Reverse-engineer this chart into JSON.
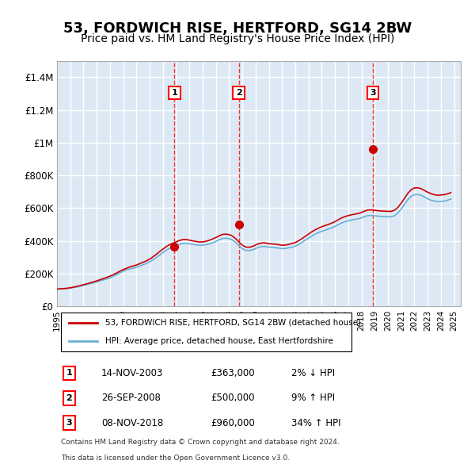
{
  "title": "53, FORDWICH RISE, HERTFORD, SG14 2BW",
  "subtitle": "Price paid vs. HM Land Registry's House Price Index (HPI)",
  "title_fontsize": 13,
  "subtitle_fontsize": 10,
  "background_color": "#ffffff",
  "plot_bg_color": "#dce9f5",
  "grid_color": "#ffffff",
  "ylim": [
    0,
    1500000
  ],
  "yticks": [
    0,
    200000,
    400000,
    600000,
    800000,
    1000000,
    1200000,
    1400000
  ],
  "ytick_labels": [
    "£0",
    "£200K",
    "£400K",
    "£600K",
    "£800K",
    "£1M",
    "£1.2M",
    "£1.4M"
  ],
  "xlim_start": 1995.0,
  "xlim_end": 2025.5,
  "hpi_color": "#6baed6",
  "price_color": "#cc0000",
  "transactions": [
    {
      "label": "1",
      "date": "14-NOV-2003",
      "price": 363000,
      "hpi_diff": "2% ↓ HPI",
      "year": 2003.87
    },
    {
      "label": "2",
      "date": "26-SEP-2008",
      "price": 500000,
      "hpi_diff": "9% ↑ HPI",
      "year": 2008.73
    },
    {
      "label": "3",
      "date": "08-NOV-2018",
      "price": 960000,
      "hpi_diff": "34% ↑ HPI",
      "year": 2018.85
    }
  ],
  "legend_line1": "53, FORDWICH RISE, HERTFORD, SG14 2BW (detached house)",
  "legend_line2": "HPI: Average price, detached house, East Hertfordshire",
  "footnote1": "Contains HM Land Registry data © Crown copyright and database right 2024.",
  "footnote2": "This data is licensed under the Open Government Licence v3.0.",
  "hpi_data_x": [
    1995.0,
    1995.25,
    1995.5,
    1995.75,
    1996.0,
    1996.25,
    1996.5,
    1996.75,
    1997.0,
    1997.25,
    1997.5,
    1997.75,
    1998.0,
    1998.25,
    1998.5,
    1998.75,
    1999.0,
    1999.25,
    1999.5,
    1999.75,
    2000.0,
    2000.25,
    2000.5,
    2000.75,
    2001.0,
    2001.25,
    2001.5,
    2001.75,
    2002.0,
    2002.25,
    2002.5,
    2002.75,
    2003.0,
    2003.25,
    2003.5,
    2003.75,
    2004.0,
    2004.25,
    2004.5,
    2004.75,
    2005.0,
    2005.25,
    2005.5,
    2005.75,
    2006.0,
    2006.25,
    2006.5,
    2006.75,
    2007.0,
    2007.25,
    2007.5,
    2007.75,
    2008.0,
    2008.25,
    2008.5,
    2008.75,
    2009.0,
    2009.25,
    2009.5,
    2009.75,
    2010.0,
    2010.25,
    2010.5,
    2010.75,
    2011.0,
    2011.25,
    2011.5,
    2011.75,
    2012.0,
    2012.25,
    2012.5,
    2012.75,
    2013.0,
    2013.25,
    2013.5,
    2013.75,
    2014.0,
    2014.25,
    2014.5,
    2014.75,
    2015.0,
    2015.25,
    2015.5,
    2015.75,
    2016.0,
    2016.25,
    2016.5,
    2016.75,
    2017.0,
    2017.25,
    2017.5,
    2017.75,
    2018.0,
    2018.25,
    2018.5,
    2018.75,
    2019.0,
    2019.25,
    2019.5,
    2019.75,
    2020.0,
    2020.25,
    2020.5,
    2020.75,
    2021.0,
    2021.25,
    2021.5,
    2021.75,
    2022.0,
    2022.25,
    2022.5,
    2022.75,
    2023.0,
    2023.25,
    2023.5,
    2023.75,
    2024.0,
    2024.25,
    2024.5,
    2024.75
  ],
  "hpi_data_y": [
    105000,
    106000,
    107000,
    108000,
    111000,
    114000,
    118000,
    122000,
    128000,
    133000,
    138000,
    143000,
    148000,
    155000,
    161000,
    167000,
    174000,
    183000,
    193000,
    204000,
    214000,
    222000,
    228000,
    233000,
    238000,
    246000,
    254000,
    261000,
    271000,
    284000,
    298000,
    313000,
    328000,
    342000,
    354000,
    362000,
    370000,
    378000,
    383000,
    384000,
    381000,
    378000,
    375000,
    373000,
    373000,
    376000,
    381000,
    388000,
    396000,
    406000,
    414000,
    416000,
    413000,
    405000,
    390000,
    370000,
    352000,
    342000,
    340000,
    344000,
    353000,
    361000,
    365000,
    365000,
    361000,
    360000,
    358000,
    355000,
    352000,
    353000,
    357000,
    361000,
    367000,
    377000,
    390000,
    403000,
    416000,
    429000,
    441000,
    450000,
    458000,
    465000,
    472000,
    479000,
    488000,
    499000,
    509000,
    516000,
    522000,
    527000,
    531000,
    534000,
    540000,
    549000,
    554000,
    555000,
    553000,
    551000,
    549000,
    548000,
    547000,
    547000,
    553000,
    570000,
    594000,
    623000,
    651000,
    672000,
    682000,
    683000,
    678000,
    668000,
    657000,
    648000,
    643000,
    640000,
    641000,
    643000,
    648000,
    655000
  ],
  "price_data_x": [
    1995.0,
    1995.25,
    1995.5,
    1995.75,
    1996.0,
    1996.25,
    1996.5,
    1996.75,
    1997.0,
    1997.25,
    1997.5,
    1997.75,
    1998.0,
    1998.25,
    1998.5,
    1998.75,
    1999.0,
    1999.25,
    1999.5,
    1999.75,
    2000.0,
    2000.25,
    2000.5,
    2000.75,
    2001.0,
    2001.25,
    2001.5,
    2001.75,
    2002.0,
    2002.25,
    2002.5,
    2002.75,
    2003.0,
    2003.25,
    2003.5,
    2003.75,
    2004.0,
    2004.25,
    2004.5,
    2004.75,
    2005.0,
    2005.25,
    2005.5,
    2005.75,
    2006.0,
    2006.25,
    2006.5,
    2006.75,
    2007.0,
    2007.25,
    2007.5,
    2007.75,
    2008.0,
    2008.25,
    2008.5,
    2008.75,
    2009.0,
    2009.25,
    2009.5,
    2009.75,
    2010.0,
    2010.25,
    2010.5,
    2010.75,
    2011.0,
    2011.25,
    2011.5,
    2011.75,
    2012.0,
    2012.25,
    2012.5,
    2012.75,
    2013.0,
    2013.25,
    2013.5,
    2013.75,
    2014.0,
    2014.25,
    2014.5,
    2014.75,
    2015.0,
    2015.25,
    2015.5,
    2015.75,
    2016.0,
    2016.25,
    2016.5,
    2016.75,
    2017.0,
    2017.25,
    2017.5,
    2017.75,
    2018.0,
    2018.25,
    2018.5,
    2018.75,
    2019.0,
    2019.25,
    2019.5,
    2019.75,
    2020.0,
    2020.25,
    2020.5,
    2020.75,
    2021.0,
    2021.25,
    2021.5,
    2021.75,
    2022.0,
    2022.25,
    2022.5,
    2022.75,
    2023.0,
    2023.25,
    2023.5,
    2023.75,
    2024.0,
    2024.25,
    2024.5,
    2024.75
  ],
  "price_data_y": [
    105000,
    106500,
    108000,
    110000,
    113000,
    117000,
    121000,
    126000,
    132000,
    137000,
    143000,
    149000,
    155000,
    162000,
    169000,
    176000,
    184000,
    193000,
    203000,
    214000,
    224000,
    232000,
    240000,
    246000,
    252000,
    260000,
    269000,
    277000,
    288000,
    302000,
    317000,
    334000,
    349000,
    364000,
    376000,
    385000,
    393000,
    402000,
    407000,
    408000,
    404000,
    400000,
    396000,
    393000,
    393000,
    397000,
    403000,
    411000,
    420000,
    430000,
    439000,
    441000,
    438000,
    429000,
    413000,
    392000,
    373000,
    362000,
    360000,
    365000,
    374000,
    383000,
    387000,
    387000,
    382000,
    381000,
    379000,
    376000,
    373000,
    374000,
    378000,
    383000,
    389000,
    400000,
    413000,
    427000,
    441000,
    455000,
    467000,
    477000,
    486000,
    493000,
    500000,
    508000,
    517000,
    529000,
    540000,
    548000,
    554000,
    559000,
    563000,
    567000,
    573000,
    582000,
    588000,
    589000,
    587000,
    584000,
    582000,
    581000,
    580000,
    580000,
    587000,
    604000,
    630000,
    660000,
    690000,
    712000,
    723000,
    724000,
    719000,
    708000,
    697000,
    688000,
    682000,
    678000,
    680000,
    682000,
    687000,
    695000
  ]
}
